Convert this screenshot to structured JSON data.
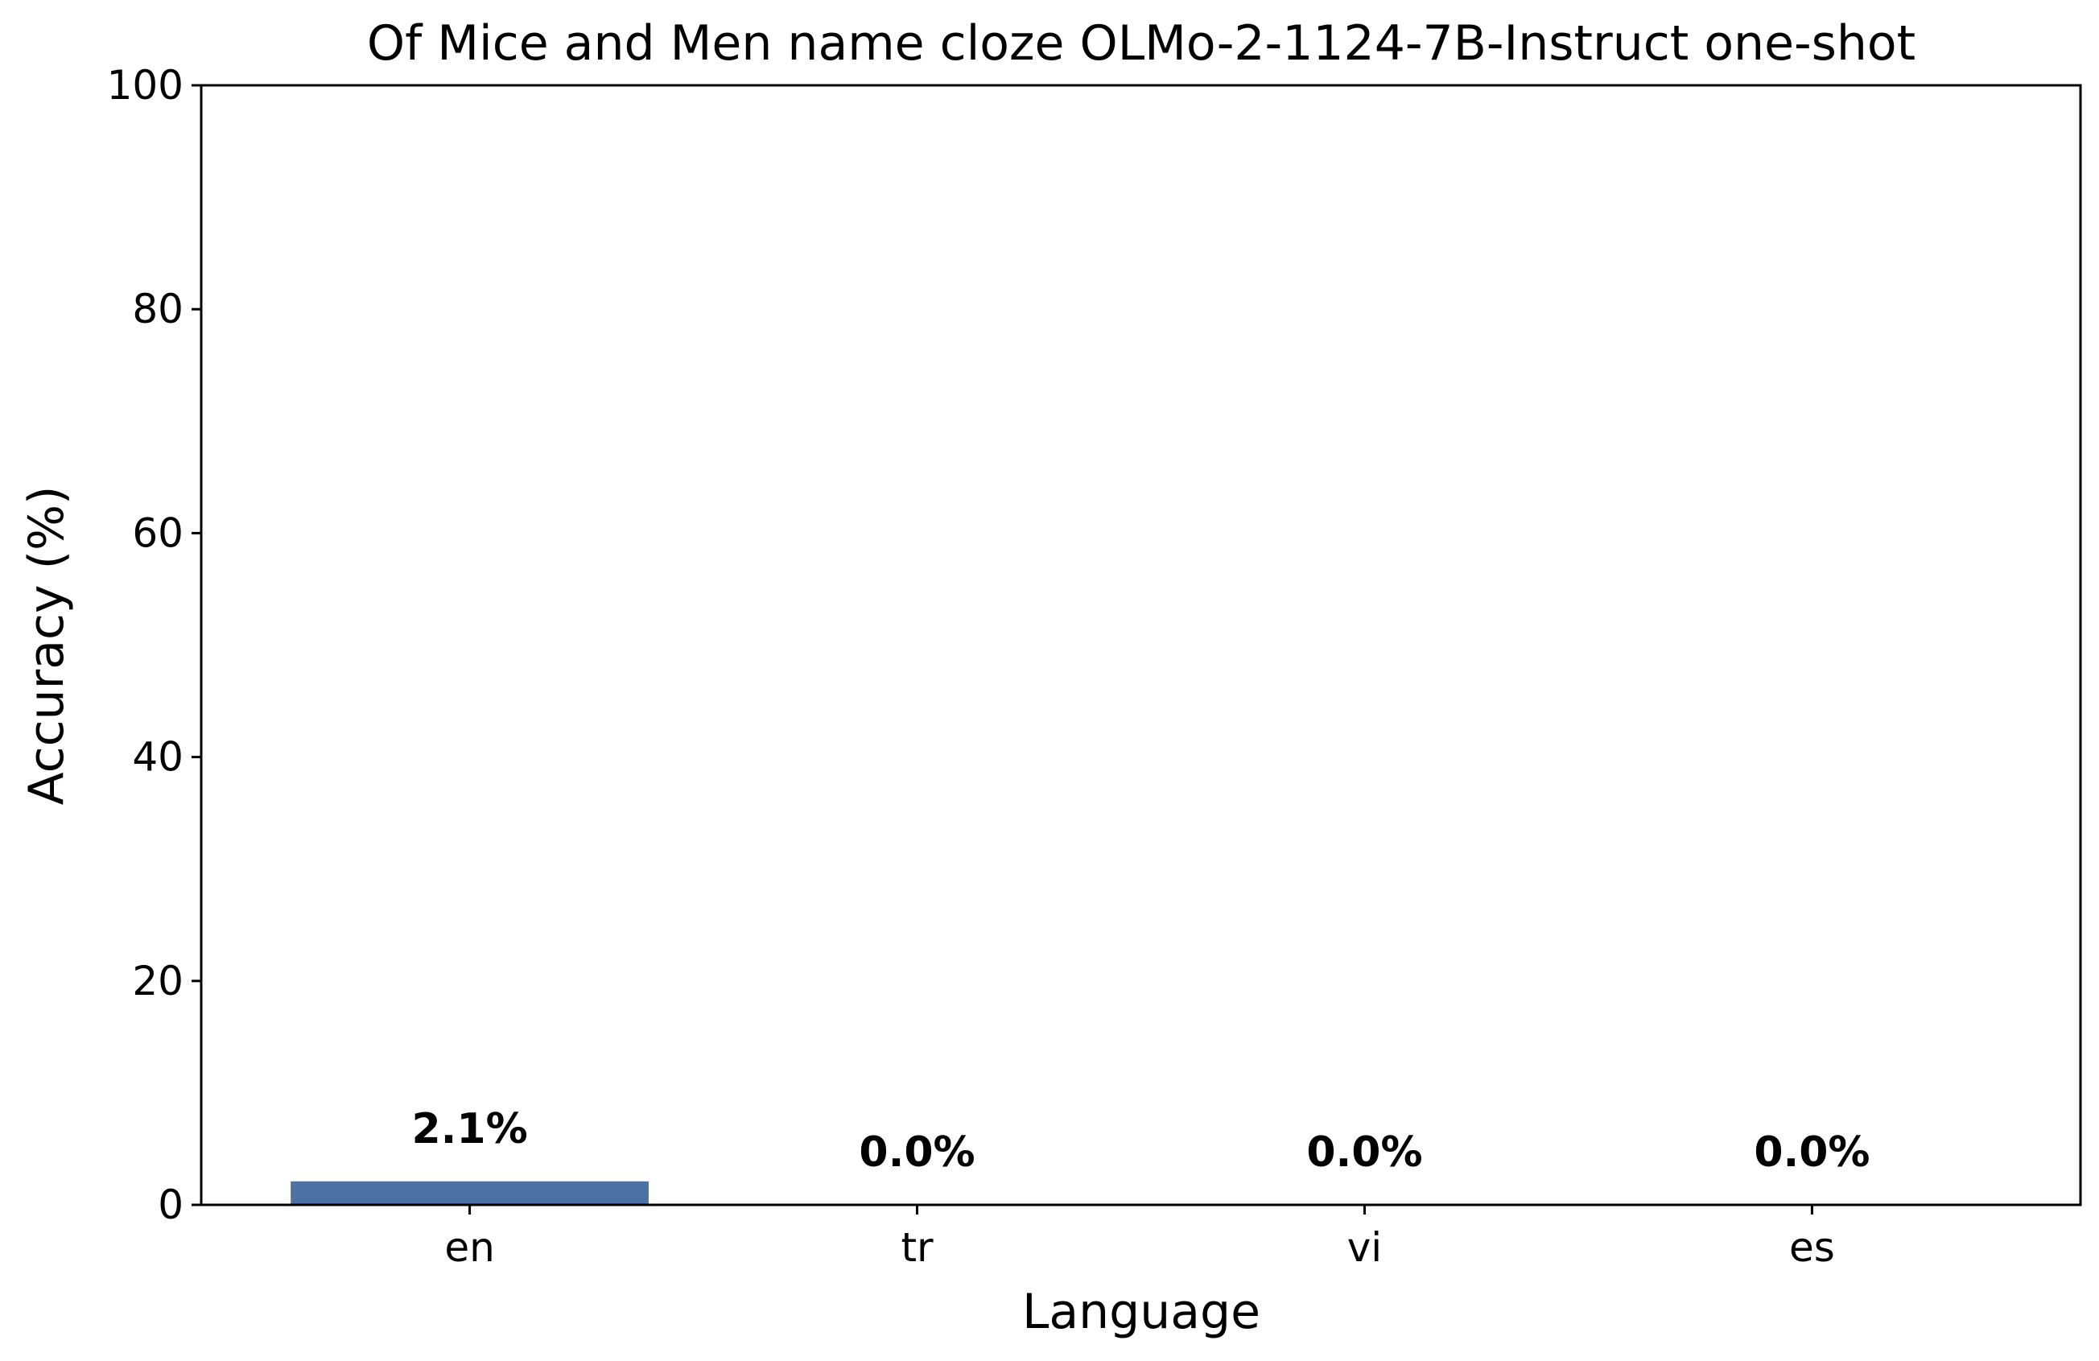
{
  "chart_data": {
    "type": "bar",
    "title": "Of Mice and Men name cloze OLMo-2-1124-7B-Instruct one-shot",
    "xlabel": "Language",
    "ylabel": "Accuracy (%)",
    "categories": [
      "en",
      "tr",
      "vi",
      "es"
    ],
    "values": [
      2.1,
      0.0,
      0.0,
      0.0
    ],
    "data_labels": [
      "2.1%",
      "0.0%",
      "0.0%",
      "0.0%"
    ],
    "ylim": [
      0,
      100
    ],
    "yticks": [
      0,
      20,
      40,
      60,
      80,
      100
    ],
    "ytick_labels": [
      "0",
      "20",
      "40",
      "60",
      "80",
      "100"
    ],
    "grid": false,
    "bar_color": "#4c72a4"
  }
}
